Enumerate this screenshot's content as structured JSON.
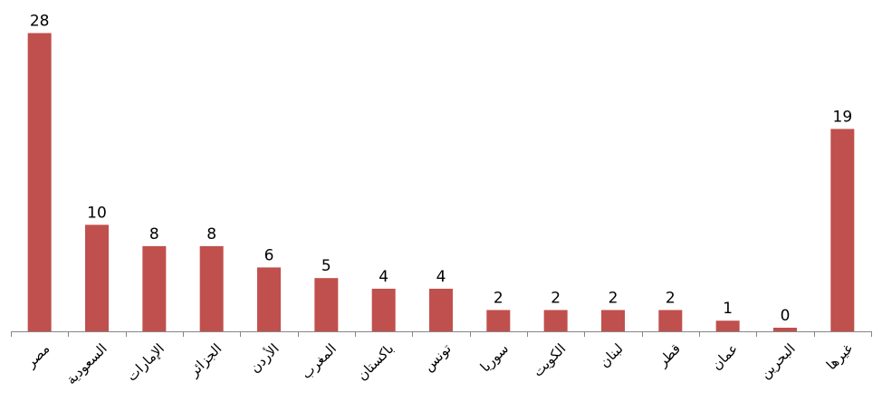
{
  "chart_data": {
    "type": "bar",
    "title": "",
    "xlabel": "",
    "ylabel": "",
    "categories": [
      "مصر",
      "السعودية",
      "الإمارات",
      "الجزائر",
      "الأردن",
      "المغرب",
      "باكستان",
      "تونس",
      "سوريا",
      "الكويت",
      "لبنان",
      "قطر",
      "عمان",
      "البحرين",
      "غيرها"
    ],
    "values": [
      28,
      10,
      8,
      8,
      6,
      5,
      4,
      4,
      2,
      2,
      2,
      2,
      1,
      0,
      19
    ],
    "display_labels": [
      "28",
      "10",
      "8",
      "8",
      "6",
      "5",
      "4",
      "4",
      "2",
      "2",
      "2",
      "2",
      "1",
      "0",
      "19"
    ],
    "ylim": [
      0,
      30
    ],
    "grid": false,
    "legend": "none",
    "bar_color": "#C0504D",
    "axis_color": "#868686"
  }
}
